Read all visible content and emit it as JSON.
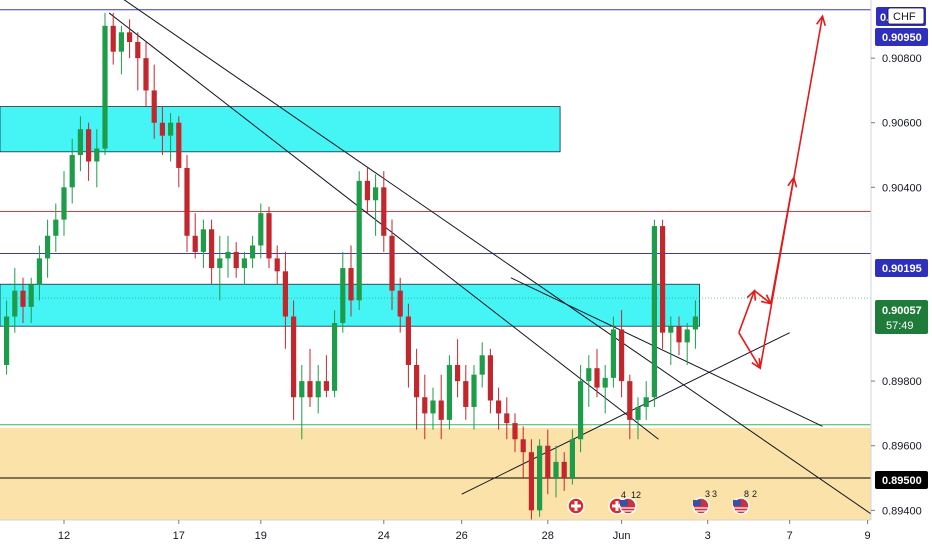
{
  "symbol_label": "CHF",
  "price_tags": {
    "top_cut": "0.",
    "blue_high": "0.90950",
    "blue_mid": "0.90195",
    "current": "0.90057",
    "countdown": "57:49",
    "black_low": "0.89500"
  },
  "events": {
    "e1": "4",
    "e2": "12",
    "e3": "3",
    "e4": "3",
    "e5": "8",
    "e6": "2"
  },
  "colors": {
    "bull": "#1e9c49",
    "bear": "#c1272d",
    "zone_cyan": "#45f5f5",
    "zone_orange": "#fbe2a9",
    "blue_line": "#3a3aca",
    "red_line": "#e23a3a",
    "green_line": "#3cb84a",
    "tag_current": "#1e7b3a",
    "tag_blue": "#2f2fbd",
    "tag_black": "#000000",
    "arrow_red": "#e01b1b"
  },
  "chart_data": {
    "type": "candlestick",
    "x_tick_labels": [
      "12",
      "17",
      "19",
      "24",
      "26",
      "28",
      "Jun",
      "3",
      "7",
      "9"
    ],
    "y_tick_labels": [
      "0.90800",
      "0.90600",
      "0.90400",
      "0.89800",
      "0.89600",
      "0.89400"
    ],
    "ylim": [
      0.8937,
      0.9098
    ],
    "levels": {
      "blue_high": 0.9095,
      "blue_mid": 0.90195,
      "red": 0.90325,
      "green": 0.89665,
      "black_low": 0.895,
      "current": 0.90057
    },
    "zones": [
      {
        "color": "cyan",
        "x_from": 0,
        "x_to": 68,
        "y_from": 0.9051,
        "y_to": 0.9065
      },
      {
        "color": "cyan",
        "x_from": 0,
        "x_to": 85,
        "y_from": 0.8997,
        "y_to": 0.901
      },
      {
        "color": "orange",
        "x_from": 0,
        "x_to": 115,
        "y_from": 0.8937,
        "y_to": 0.89655
      }
    ],
    "candles": [
      [
        0.8985,
        0.9005,
        0.8982,
        0.9
      ],
      [
        0.9,
        0.9015,
        0.8995,
        0.9008
      ],
      [
        0.9008,
        0.9012,
        0.8998,
        0.9003
      ],
      [
        0.9003,
        0.9012,
        0.8998,
        0.901
      ],
      [
        0.901,
        0.9022,
        0.9005,
        0.9018
      ],
      [
        0.9018,
        0.903,
        0.9012,
        0.9025
      ],
      [
        0.9025,
        0.9035,
        0.902,
        0.903
      ],
      [
        0.903,
        0.9045,
        0.9025,
        0.904
      ],
      [
        0.904,
        0.9055,
        0.9035,
        0.905
      ],
      [
        0.905,
        0.9062,
        0.9045,
        0.9058
      ],
      [
        0.9058,
        0.906,
        0.9042,
        0.9048
      ],
      [
        0.9048,
        0.9058,
        0.904,
        0.9052
      ],
      [
        0.9052,
        0.9094,
        0.905,
        0.909
      ],
      [
        0.909,
        0.9094,
        0.9078,
        0.9082
      ],
      [
        0.9082,
        0.909,
        0.9075,
        0.9088
      ],
      [
        0.9088,
        0.9092,
        0.908,
        0.9085
      ],
      [
        0.9085,
        0.9088,
        0.907,
        0.908
      ],
      [
        0.908,
        0.9085,
        0.9065,
        0.907
      ],
      [
        0.907,
        0.9078,
        0.9055,
        0.906
      ],
      [
        0.906,
        0.9065,
        0.905,
        0.9056
      ],
      [
        0.9056,
        0.9063,
        0.9048,
        0.906
      ],
      [
        0.906,
        0.9062,
        0.904,
        0.9046
      ],
      [
        0.9046,
        0.905,
        0.902,
        0.9025
      ],
      [
        0.9025,
        0.9032,
        0.9018,
        0.902
      ],
      [
        0.902,
        0.903,
        0.9015,
        0.9027
      ],
      [
        0.9027,
        0.903,
        0.901,
        0.9015
      ],
      [
        0.9015,
        0.9025,
        0.9005,
        0.9018
      ],
      [
        0.9018,
        0.9025,
        0.9012,
        0.902
      ],
      [
        0.902,
        0.9023,
        0.9012,
        0.9015
      ],
      [
        0.9015,
        0.902,
        0.901,
        0.9018
      ],
      [
        0.9018,
        0.9025,
        0.9015,
        0.9022
      ],
      [
        0.9022,
        0.9035,
        0.9018,
        0.9032
      ],
      [
        0.9032,
        0.9034,
        0.9015,
        0.9018
      ],
      [
        0.9018,
        0.9022,
        0.901,
        0.9014
      ],
      [
        0.9014,
        0.902,
        0.899,
        0.9
      ],
      [
        0.9,
        0.9005,
        0.8968,
        0.8975
      ],
      [
        0.8975,
        0.8985,
        0.8962,
        0.898
      ],
      [
        0.898,
        0.899,
        0.8972,
        0.8975
      ],
      [
        0.8975,
        0.8985,
        0.897,
        0.898
      ],
      [
        0.898,
        0.8988,
        0.8975,
        0.8977
      ],
      [
        0.8977,
        0.9002,
        0.8975,
        0.8998
      ],
      [
        0.8998,
        0.902,
        0.8995,
        0.9015
      ],
      [
        0.9015,
        0.9022,
        0.9,
        0.9005
      ],
      [
        0.9005,
        0.9045,
        0.9002,
        0.9042
      ],
      [
        0.9042,
        0.9046,
        0.9032,
        0.9036
      ],
      [
        0.9036,
        0.9044,
        0.9025,
        0.904
      ],
      [
        0.904,
        0.9045,
        0.902,
        0.9025
      ],
      [
        0.9025,
        0.903,
        0.9002,
        0.9008
      ],
      [
        0.9008,
        0.9012,
        0.8995,
        0.9
      ],
      [
        0.9,
        0.9004,
        0.8978,
        0.8985
      ],
      [
        0.8985,
        0.899,
        0.8965,
        0.8975
      ],
      [
        0.8975,
        0.8982,
        0.8962,
        0.897
      ],
      [
        0.897,
        0.8978,
        0.8965,
        0.8974
      ],
      [
        0.8974,
        0.8982,
        0.8962,
        0.8968
      ],
      [
        0.8968,
        0.8988,
        0.8965,
        0.8985
      ],
      [
        0.8985,
        0.8993,
        0.8975,
        0.898
      ],
      [
        0.898,
        0.8985,
        0.8968,
        0.8972
      ],
      [
        0.8972,
        0.8985,
        0.8965,
        0.8982
      ],
      [
        0.8982,
        0.8992,
        0.8978,
        0.8988
      ],
      [
        0.8988,
        0.899,
        0.897,
        0.8974
      ],
      [
        0.8974,
        0.8978,
        0.8965,
        0.897
      ],
      [
        0.897,
        0.8975,
        0.8962,
        0.8967
      ],
      [
        0.8967,
        0.897,
        0.8958,
        0.8962
      ],
      [
        0.8962,
        0.8966,
        0.895,
        0.8958
      ],
      [
        0.8958,
        0.8962,
        0.8935,
        0.894
      ],
      [
        0.894,
        0.8962,
        0.8938,
        0.896
      ],
      [
        0.896,
        0.8965,
        0.8945,
        0.895
      ],
      [
        0.895,
        0.896,
        0.8944,
        0.8955
      ],
      [
        0.8955,
        0.8958,
        0.8946,
        0.895
      ],
      [
        0.895,
        0.8965,
        0.8948,
        0.8962
      ],
      [
        0.8962,
        0.8985,
        0.8958,
        0.898
      ],
      [
        0.898,
        0.8988,
        0.8972,
        0.8984
      ],
      [
        0.8984,
        0.899,
        0.8975,
        0.8978
      ],
      [
        0.8978,
        0.8985,
        0.897,
        0.8981
      ],
      [
        0.8981,
        0.9,
        0.8978,
        0.8996
      ],
      [
        0.8996,
        0.9002,
        0.8975,
        0.898
      ],
      [
        0.898,
        0.8982,
        0.8962,
        0.8968
      ],
      [
        0.8968,
        0.8975,
        0.8962,
        0.8972
      ],
      [
        0.8972,
        0.898,
        0.8968,
        0.8975
      ],
      [
        0.8975,
        0.903,
        0.8972,
        0.9028
      ],
      [
        0.9028,
        0.903,
        0.899,
        0.8995
      ],
      [
        0.8995,
        0.9,
        0.8985,
        0.8997
      ],
      [
        0.8997,
        0.9,
        0.8988,
        0.8992
      ],
      [
        0.8992,
        0.8998,
        0.8985,
        0.8996
      ],
      [
        0.8996,
        0.9005,
        0.899,
        0.9
      ]
    ],
    "annotations": {
      "trendlines": [
        {
          "x1": 13,
          "y1": 0.9094,
          "x2": 80,
          "y2": 0.8962
        },
        {
          "x1": 0,
          "y1": 0.9124,
          "x2": 107,
          "y2": 0.8937
        },
        {
          "x1": 56,
          "y1": 0.8945,
          "x2": 96,
          "y2": 0.8995
        },
        {
          "x1": 62,
          "y1": 0.9012,
          "x2": 100,
          "y2": 0.8966
        }
      ],
      "arrows": [
        {
          "points": [
            [
              89.8,
              0.8995
            ],
            [
              91.7,
              0.9008
            ],
            [
              93.7,
              0.9004
            ],
            [
              96.5,
              0.9043
            ]
          ]
        },
        {
          "points": [
            [
              89.8,
              0.8995
            ],
            [
              92.4,
              0.8984
            ],
            [
              100.0,
              0.9093
            ]
          ]
        }
      ]
    },
    "x_tick_bar_positions": [
      7,
      21,
      31,
      46,
      55.5,
      66,
      75,
      85.5,
      95.5,
      105
    ]
  }
}
